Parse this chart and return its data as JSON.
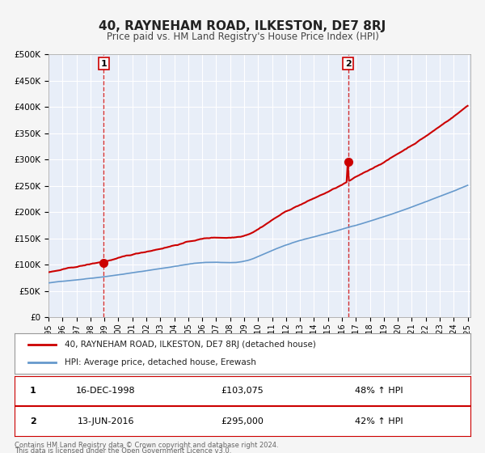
{
  "title": "40, RAYNEHAM ROAD, ILKESTON, DE7 8RJ",
  "subtitle": "Price paid vs. HM Land Registry's House Price Index (HPI)",
  "bg_color": "#f0f4ff",
  "plot_bg_color": "#e8eef8",
  "grid_color": "#ffffff",
  "red_line_color": "#cc0000",
  "blue_line_color": "#6699cc",
  "marker1_date": 1998.96,
  "marker1_value": 103075,
  "marker1_label": "1",
  "marker1_date_str": "16-DEC-1998",
  "marker1_price": "£103,075",
  "marker1_hpi": "48% ↑ HPI",
  "marker2_date": 2016.44,
  "marker2_value": 295000,
  "marker2_label": "2",
  "marker2_date_str": "13-JUN-2016",
  "marker2_price": "£295,000",
  "marker2_hpi": "42% ↑ HPI",
  "legend_label1": "40, RAYNEHAM ROAD, ILKESTON, DE7 8RJ (detached house)",
  "legend_label2": "HPI: Average price, detached house, Erewash",
  "footer1": "Contains HM Land Registry data © Crown copyright and database right 2024.",
  "footer2": "This data is licensed under the Open Government Licence v3.0.",
  "ylim": [
    0,
    500000
  ],
  "xlim_start": 1995.0,
  "xlim_end": 2025.2
}
